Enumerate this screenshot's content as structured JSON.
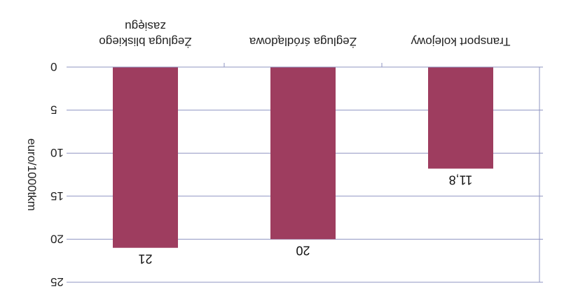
{
  "chart_data": {
    "type": "bar",
    "orientation": "vertical, rendered mirrored and upside-down (image rotated 180°)",
    "categories": [
      "Transport kolejowy",
      "Żegluga śródlądowa",
      "Żegluga bliskiego zasięgu"
    ],
    "values": [
      11.8,
      20,
      21
    ],
    "data_labels": [
      "11,8",
      "20",
      "21"
    ],
    "ylabel": "euro/1000tkm",
    "ylim": [
      0,
      25
    ],
    "yticks": [
      0,
      5,
      10,
      15,
      20,
      25
    ],
    "ytick_labels": [
      "0",
      "5",
      "10",
      "15",
      "20",
      "25"
    ],
    "grid": true,
    "legend": "none",
    "colors": {
      "bar": "#9e3d5f",
      "grid": "#8f94c2",
      "axis": "#8f94c2"
    }
  }
}
